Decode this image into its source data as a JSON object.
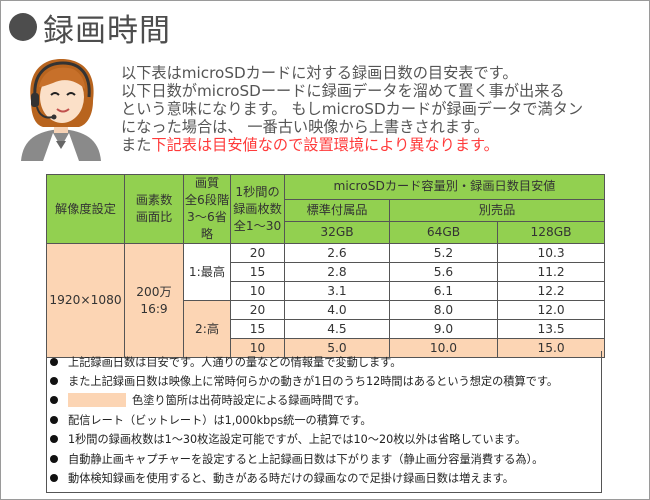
{
  "title": "録画時間",
  "intro": {
    "line1": "以下表はmicroSDカードに対する録画日数の目安表です。",
    "line2": "以下日数がmicroSDーードに録画データを溜めて置く事が出来る",
    "line3": "という意味になります。 もしmicroSDカードが録画データで満タン",
    "line4": "になった場合は、 一番古い映像から上書きされます。",
    "line5_plain": "また",
    "line5_red": "下記表は目安値なので設置環境により異なります。"
  },
  "colors": {
    "header_green": "#92d050",
    "highlight_pink": "#fcd5b4",
    "warning_red": "#ff3b3b"
  },
  "table": {
    "headers": {
      "resolution": "解像度設定",
      "pixels_line1": "画素数",
      "pixels_line2": "画面比",
      "quality_line1": "画質",
      "quality_line2": "全6段階",
      "quality_line3": "3～6省略",
      "fps_line1": "1秒間の",
      "fps_line2": "録画枚数",
      "fps_line3": "全1～30",
      "capacity_group": "microSDカード容量別・録画日数目安値",
      "standard": "標準付属品",
      "optional": "別売品",
      "cap1": "32GB",
      "cap2": "64GB",
      "cap3": "128GB"
    },
    "resolution": "1920×1080",
    "pixels_line1": "200万",
    "pixels_line2": "16:9",
    "quality1": "1:最高",
    "quality2": "2:高",
    "rows": [
      {
        "fps": "20",
        "c32": "2.6",
        "c64": "5.2",
        "c128": "10.3"
      },
      {
        "fps": "15",
        "c32": "2.8",
        "c64": "5.6",
        "c128": "11.2"
      },
      {
        "fps": "10",
        "c32": "3.1",
        "c64": "6.1",
        "c128": "12.2"
      },
      {
        "fps": "20",
        "c32": "4.0",
        "c64": "8.0",
        "c128": "12.0"
      },
      {
        "fps": "15",
        "c32": "4.5",
        "c64": "9.0",
        "c128": "13.5"
      },
      {
        "fps": "10",
        "c32": "5.0",
        "c64": "10.0",
        "c128": "15.0"
      }
    ]
  },
  "notes": [
    "上記録画日数は目安です。人通りの量などの情報量で変動します。",
    "また上記録画日数は映像上に常時何らかの動きが1日のうち12時間はあるという想定の積算です。",
    "色塗り箇所は出荷時設定による録画時間です。",
    "配信レート（ビットレート）は1,000kbps統一の積算です。",
    "1秒間の録画枚数は1～30枚迄設定可能ですが、上記では10～20枚以外は省略しています。",
    "自動静止画キャプチャーを設定すると上記録画日数は下がります（静止画分容量消費する為）。",
    "動体検知録画を使用すると、動きがある時だけの録画なので足掛け録画日数は増えます。"
  ]
}
